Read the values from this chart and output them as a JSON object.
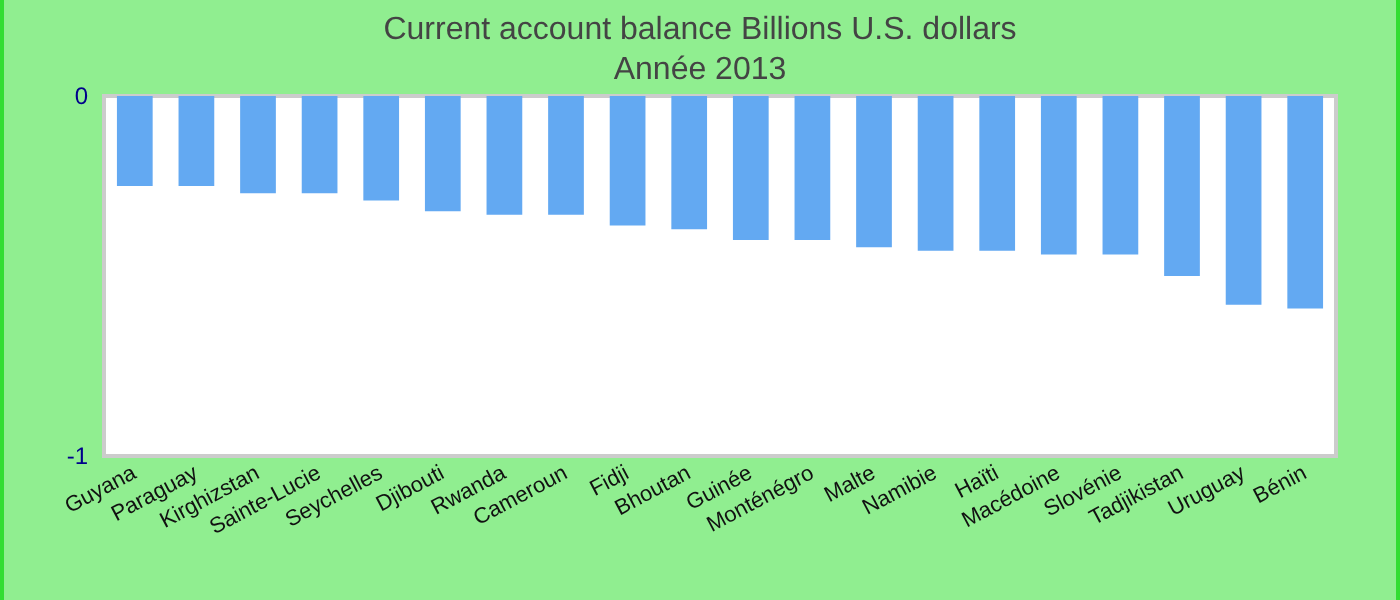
{
  "chart_data": {
    "type": "bar",
    "title": "Current account balance Billions U.S. dollars",
    "subtitle": "Année 2013",
    "categories": [
      "Guyana",
      "Paraguay",
      "Kirghizstan",
      "Sainte-Lucie",
      "Seychelles",
      "Djibouti",
      "Rwanda",
      "Cameroun",
      "Fidji",
      "Bhoutan",
      "Guinée",
      "Monténégro",
      "Malte",
      "Namibie",
      "Haïti",
      "Macédoine",
      "Slovénie",
      "Tadjikistan",
      "Uruguay",
      "Bénin"
    ],
    "values": [
      -0.25,
      -0.25,
      -0.27,
      -0.27,
      -0.29,
      -0.32,
      -0.33,
      -0.33,
      -0.36,
      -0.37,
      -0.4,
      -0.4,
      -0.42,
      -0.43,
      -0.43,
      -0.44,
      -0.44,
      -0.5,
      -0.58,
      -0.59
    ],
    "color": "#63a9f2",
    "ylim": [
      -1,
      0
    ],
    "yticks": [
      -1,
      0
    ],
    "grid": false
  }
}
